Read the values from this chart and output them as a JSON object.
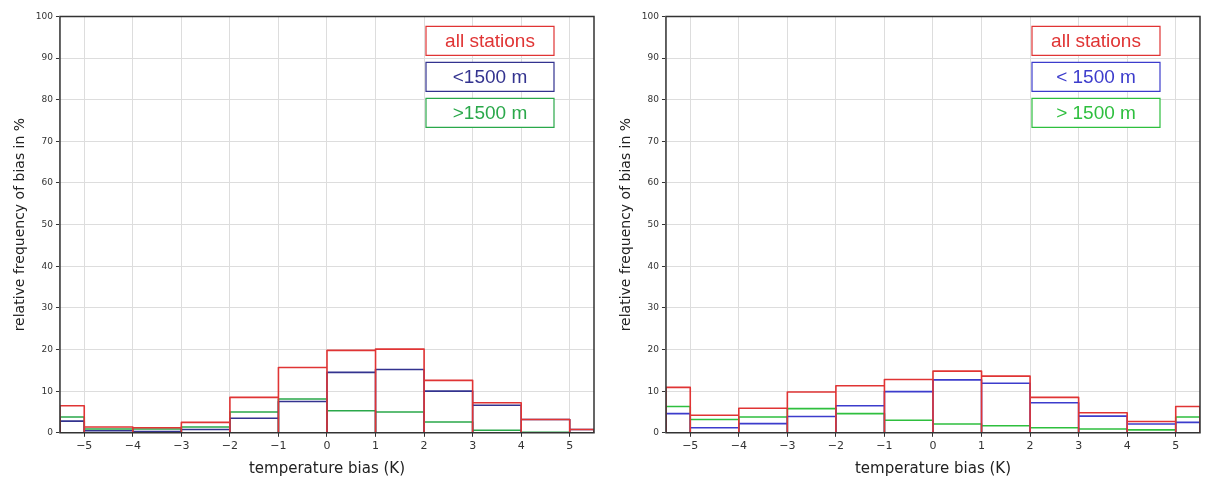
{
  "chart_data": [
    {
      "type": "histogram",
      "xlabel": "temperature bias (K)",
      "ylabel": "relative frequency of bias in %",
      "bins": [
        -5.5,
        -5,
        -4,
        -3,
        -2,
        -1,
        0,
        1,
        2,
        3,
        4,
        5,
        5.5
      ],
      "series": [
        {
          "name": "all stations",
          "color": "#e03434",
          "values": [
            6.5,
            1.4,
            1.2,
            2.5,
            8.5,
            15.7,
            19.8,
            20.1,
            12.6,
            7.2,
            3.2,
            0.8
          ]
        },
        {
          "name": "<1500 m",
          "color": "#33338f",
          "values": [
            2.8,
            0.5,
            0.3,
            0.8,
            3.5,
            7.5,
            14.5,
            15.2,
            10.0,
            6.6,
            3.2,
            0.8
          ]
        },
        {
          "name": ">1500 m",
          "color": "#2aa84a",
          "values": [
            3.8,
            0.9,
            0.9,
            1.4,
            5.0,
            8.1,
            5.3,
            5.0,
            2.6,
            0.6,
            0.1,
            0
          ]
        }
      ],
      "xlim": [
        -5.5,
        5.5
      ],
      "xticks": [
        -5,
        -4,
        -3,
        -2,
        -1,
        0,
        1,
        2,
        3,
        4,
        5
      ],
      "ylim": [
        0,
        100
      ],
      "yticks": [
        0,
        10,
        20,
        30,
        40,
        50,
        60,
        70,
        80,
        90,
        100
      ],
      "grid": true,
      "legend": "top right"
    },
    {
      "type": "histogram",
      "xlabel": "temperature bias (K)",
      "ylabel": "relative frequency of bias in %",
      "bins": [
        -5.5,
        -5,
        -4,
        -3,
        -2,
        -1,
        0,
        1,
        2,
        3,
        4,
        5,
        5.5
      ],
      "series": [
        {
          "name": "all stations",
          "color": "#e03434",
          "values": [
            10.9,
            4.2,
            5.9,
            9.8,
            11.3,
            12.8,
            14.8,
            13.6,
            8.5,
            4.8,
            2.7,
            6.3
          ]
        },
        {
          "name": "< 1500 m",
          "color": "#3c3ccc",
          "values": [
            4.6,
            1.2,
            2.2,
            3.9,
            6.5,
            9.9,
            12.7,
            11.9,
            7.2,
            4.0,
            2.1,
            2.5
          ]
        },
        {
          "name": "> 1500 m",
          "color": "#2ebf3e",
          "values": [
            6.3,
            3.2,
            3.8,
            5.8,
            4.6,
            3.0,
            2.1,
            1.7,
            1.2,
            0.9,
            0.7,
            3.8
          ]
        }
      ],
      "xlim": [
        -5.5,
        5.5
      ],
      "xticks": [
        -5,
        -4,
        -3,
        -2,
        -1,
        0,
        1,
        2,
        3,
        4,
        5
      ],
      "ylim": [
        0,
        100
      ],
      "yticks": [
        0,
        10,
        20,
        30,
        40,
        50,
        60,
        70,
        80,
        90,
        100
      ],
      "grid": true,
      "legend": "top right"
    }
  ]
}
